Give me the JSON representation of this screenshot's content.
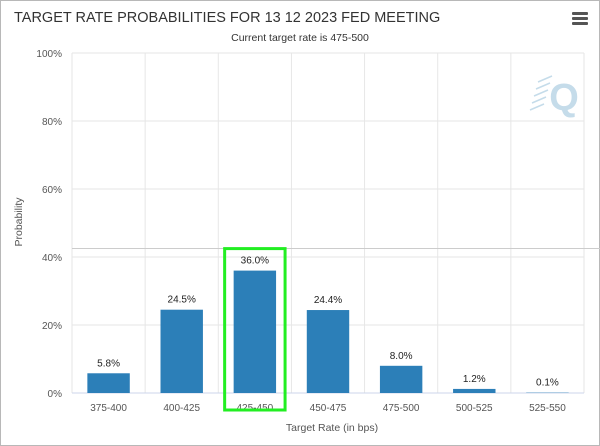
{
  "chart_data": {
    "type": "bar",
    "title": "TARGET RATE PROBABILITIES FOR 13 12 2023 FED MEETING",
    "subtitle": "Current target rate is 475-500",
    "xlabel": "Target Rate (in bps)",
    "ylabel": "Probability",
    "ylim": [
      0,
      100
    ],
    "yticks": [
      "0%",
      "20%",
      "40%",
      "60%",
      "80%",
      "100%"
    ],
    "grid": true,
    "categories": [
      "375-400",
      "400-425",
      "425-450",
      "450-475",
      "475-500",
      "500-525",
      "525-550"
    ],
    "values": [
      5.8,
      24.5,
      36.0,
      24.4,
      8.0,
      1.2,
      0.1
    ],
    "data_labels": [
      "5.8%",
      "24.5%",
      "36.0%",
      "24.4%",
      "8.0%",
      "1.2%",
      "0.1%"
    ],
    "highlighted_category": "425-450",
    "reference_line_y": 42.5
  },
  "colors": {
    "bar": "#2c7fb8",
    "highlight_box": "#22ee22",
    "grid": "#e6e6e6",
    "reference_line": "#cccccc",
    "logo": "#c5dcea"
  },
  "menu_icon": "hamburger-menu-icon",
  "logo_icon": "quikstrike-q-logo-icon"
}
